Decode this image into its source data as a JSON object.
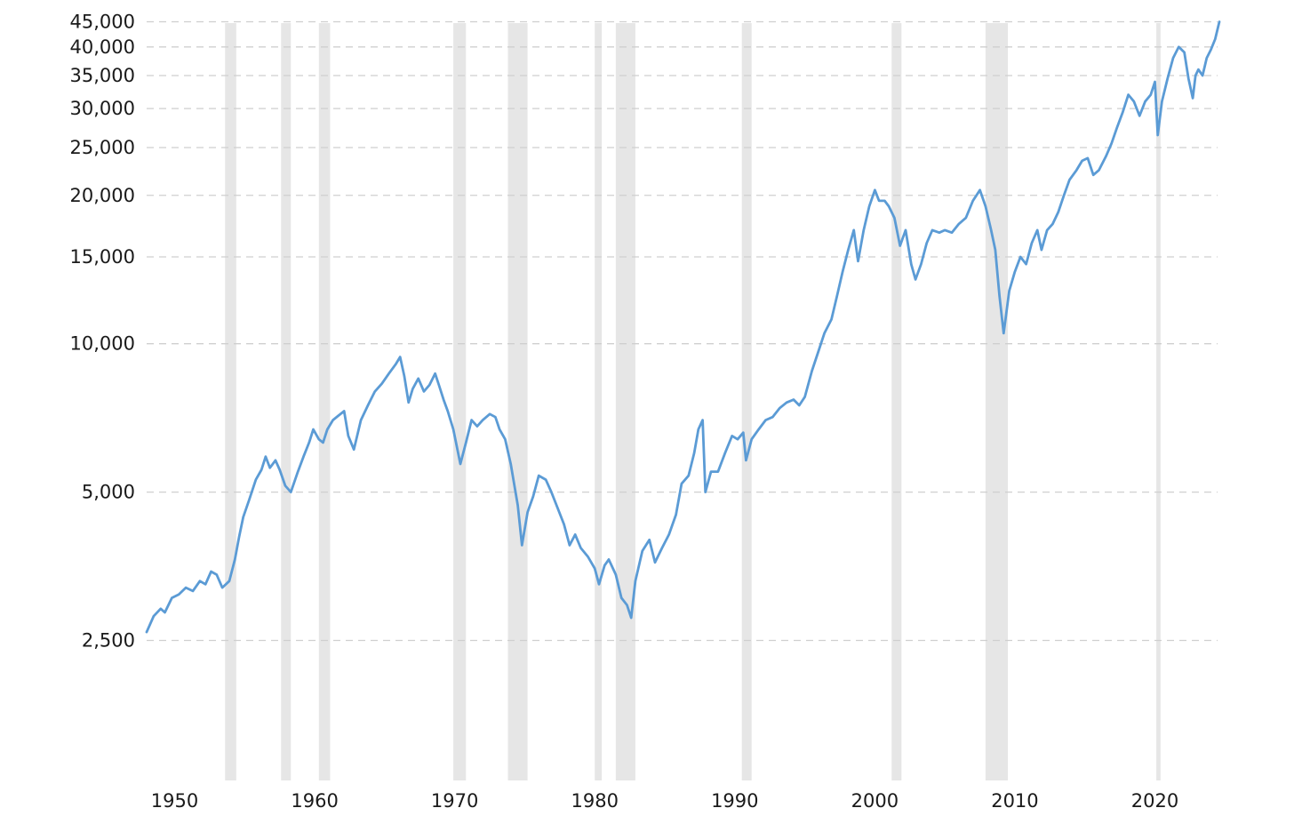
{
  "chart_data": {
    "type": "line",
    "title": "",
    "xlabel": "",
    "ylabel": "",
    "x_scale": "time",
    "y_scale": "log",
    "xlim": [
      1948.0,
      2023.4
    ],
    "ylim": [
      1300,
      47000
    ],
    "grid": "horizontal dashed",
    "y_ticks": [
      {
        "value": 2500,
        "label": "2,500"
      },
      {
        "value": 5000,
        "label": "5,000"
      },
      {
        "value": 10000,
        "label": "10,000"
      },
      {
        "value": 15000,
        "label": "15,000"
      },
      {
        "value": 20000,
        "label": "20,000"
      },
      {
        "value": 25000,
        "label": "25,000"
      },
      {
        "value": 30000,
        "label": "30,000"
      },
      {
        "value": 35000,
        "label": "35,000"
      },
      {
        "value": 40000,
        "label": "40,000"
      },
      {
        "value": 45000,
        "label": "45,000"
      }
    ],
    "x_ticks": [
      {
        "value": 1950,
        "label": "1950"
      },
      {
        "value": 1960,
        "label": "1960"
      },
      {
        "value": 1970,
        "label": "1970"
      },
      {
        "value": 1980,
        "label": "1980"
      },
      {
        "value": 1990,
        "label": "1990"
      },
      {
        "value": 2000,
        "label": "2000"
      },
      {
        "value": 2010,
        "label": "2010"
      },
      {
        "value": 2020,
        "label": "2020"
      }
    ],
    "recessions": [
      [
        1953.6,
        1954.4
      ],
      [
        1957.6,
        1958.3
      ],
      [
        1960.3,
        1961.1
      ],
      [
        1969.9,
        1970.8
      ],
      [
        1973.8,
        1975.2
      ],
      [
        1980.0,
        1980.5
      ],
      [
        1981.5,
        1982.9
      ],
      [
        1990.5,
        1991.2
      ],
      [
        2001.2,
        2001.9
      ],
      [
        2007.9,
        2009.5
      ],
      [
        2020.1,
        2020.4
      ]
    ],
    "series": [
      {
        "color": "#5b9bd5",
        "points": [
          [
            1948.0,
            2600
          ],
          [
            1948.5,
            2800
          ],
          [
            1949.0,
            2900
          ],
          [
            1949.3,
            2850
          ],
          [
            1949.8,
            3050
          ],
          [
            1950.3,
            3100
          ],
          [
            1950.8,
            3200
          ],
          [
            1951.3,
            3150
          ],
          [
            1951.8,
            3300
          ],
          [
            1952.2,
            3250
          ],
          [
            1952.6,
            3450
          ],
          [
            1953.0,
            3400
          ],
          [
            1953.4,
            3200
          ],
          [
            1953.9,
            3300
          ],
          [
            1954.3,
            3650
          ],
          [
            1954.6,
            4050
          ],
          [
            1954.9,
            4450
          ],
          [
            1955.3,
            4800
          ],
          [
            1955.8,
            5300
          ],
          [
            1956.2,
            5550
          ],
          [
            1956.5,
            5900
          ],
          [
            1956.8,
            5600
          ],
          [
            1957.2,
            5800
          ],
          [
            1957.5,
            5550
          ],
          [
            1957.9,
            5150
          ],
          [
            1958.3,
            5000
          ],
          [
            1958.8,
            5500
          ],
          [
            1959.2,
            5900
          ],
          [
            1959.6,
            6300
          ],
          [
            1959.9,
            6700
          ],
          [
            1960.3,
            6400
          ],
          [
            1960.6,
            6300
          ],
          [
            1960.9,
            6700
          ],
          [
            1961.3,
            7000
          ],
          [
            1961.7,
            7150
          ],
          [
            1962.1,
            7300
          ],
          [
            1962.4,
            6500
          ],
          [
            1962.8,
            6100
          ],
          [
            1963.3,
            7000
          ],
          [
            1963.8,
            7500
          ],
          [
            1964.3,
            8000
          ],
          [
            1964.8,
            8300
          ],
          [
            1965.3,
            8700
          ],
          [
            1965.8,
            9100
          ],
          [
            1966.1,
            9400
          ],
          [
            1966.4,
            8600
          ],
          [
            1966.7,
            7600
          ],
          [
            1967.0,
            8100
          ],
          [
            1967.4,
            8500
          ],
          [
            1967.8,
            8000
          ],
          [
            1968.2,
            8250
          ],
          [
            1968.6,
            8700
          ],
          [
            1968.9,
            8200
          ],
          [
            1969.2,
            7700
          ],
          [
            1969.5,
            7300
          ],
          [
            1969.9,
            6700
          ],
          [
            1970.4,
            5700
          ],
          [
            1970.8,
            6300
          ],
          [
            1971.2,
            7000
          ],
          [
            1971.6,
            6800
          ],
          [
            1972.0,
            7000
          ],
          [
            1972.5,
            7200
          ],
          [
            1972.9,
            7100
          ],
          [
            1973.2,
            6700
          ],
          [
            1973.6,
            6400
          ],
          [
            1974.0,
            5700
          ],
          [
            1974.5,
            4700
          ],
          [
            1974.8,
            3900
          ],
          [
            1975.2,
            4550
          ],
          [
            1975.6,
            4900
          ],
          [
            1976.0,
            5400
          ],
          [
            1976.5,
            5300
          ],
          [
            1976.9,
            5000
          ],
          [
            1977.4,
            4600
          ],
          [
            1977.8,
            4300
          ],
          [
            1978.2,
            3900
          ],
          [
            1978.6,
            4100
          ],
          [
            1979.0,
            3850
          ],
          [
            1979.5,
            3700
          ],
          [
            1980.0,
            3500
          ],
          [
            1980.3,
            3250
          ],
          [
            1980.7,
            3550
          ],
          [
            1981.0,
            3650
          ],
          [
            1981.5,
            3400
          ],
          [
            1981.9,
            3050
          ],
          [
            1982.3,
            2950
          ],
          [
            1982.6,
            2780
          ],
          [
            1982.9,
            3300
          ],
          [
            1983.4,
            3800
          ],
          [
            1983.9,
            4000
          ],
          [
            1984.3,
            3600
          ],
          [
            1984.8,
            3850
          ],
          [
            1985.3,
            4100
          ],
          [
            1985.8,
            4500
          ],
          [
            1986.2,
            5200
          ],
          [
            1986.7,
            5400
          ],
          [
            1987.1,
            6000
          ],
          [
            1987.4,
            6700
          ],
          [
            1987.7,
            7000
          ],
          [
            1987.9,
            5000
          ],
          [
            1988.3,
            5500
          ],
          [
            1988.8,
            5500
          ],
          [
            1989.3,
            6000
          ],
          [
            1989.8,
            6500
          ],
          [
            1990.2,
            6400
          ],
          [
            1990.6,
            6600
          ],
          [
            1990.8,
            5800
          ],
          [
            1991.2,
            6400
          ],
          [
            1991.7,
            6700
          ],
          [
            1992.2,
            7000
          ],
          [
            1992.7,
            7100
          ],
          [
            1993.2,
            7400
          ],
          [
            1993.7,
            7600
          ],
          [
            1994.2,
            7700
          ],
          [
            1994.6,
            7500
          ],
          [
            1995.0,
            7800
          ],
          [
            1995.5,
            8800
          ],
          [
            1996.0,
            9700
          ],
          [
            1996.4,
            10500
          ],
          [
            1996.9,
            11200
          ],
          [
            1997.3,
            12500
          ],
          [
            1997.7,
            14000
          ],
          [
            1998.1,
            15500
          ],
          [
            1998.5,
            17000
          ],
          [
            1998.8,
            14700
          ],
          [
            1999.2,
            17000
          ],
          [
            1999.6,
            19000
          ],
          [
            2000.0,
            20500
          ],
          [
            2000.3,
            19500
          ],
          [
            2000.7,
            19500
          ],
          [
            2001.0,
            19000
          ],
          [
            2001.4,
            18000
          ],
          [
            2001.8,
            15800
          ],
          [
            2002.2,
            17000
          ],
          [
            2002.6,
            14500
          ],
          [
            2002.9,
            13500
          ],
          [
            2003.3,
            14500
          ],
          [
            2003.7,
            16000
          ],
          [
            2004.1,
            17000
          ],
          [
            2004.6,
            16800
          ],
          [
            2005.0,
            17000
          ],
          [
            2005.5,
            16800
          ],
          [
            2006.0,
            17500
          ],
          [
            2006.5,
            18000
          ],
          [
            2007.0,
            19500
          ],
          [
            2007.5,
            20500
          ],
          [
            2007.9,
            19000
          ],
          [
            2008.3,
            17000
          ],
          [
            2008.6,
            15500
          ],
          [
            2008.9,
            12500
          ],
          [
            2009.2,
            10500
          ],
          [
            2009.6,
            12800
          ],
          [
            2010.0,
            14000
          ],
          [
            2010.4,
            15000
          ],
          [
            2010.8,
            14500
          ],
          [
            2011.2,
            16000
          ],
          [
            2011.6,
            17000
          ],
          [
            2011.9,
            15500
          ],
          [
            2012.3,
            17000
          ],
          [
            2012.7,
            17500
          ],
          [
            2013.1,
            18500
          ],
          [
            2013.5,
            20000
          ],
          [
            2013.9,
            21500
          ],
          [
            2014.4,
            22500
          ],
          [
            2014.8,
            23500
          ],
          [
            2015.2,
            23800
          ],
          [
            2015.6,
            22000
          ],
          [
            2016.0,
            22500
          ],
          [
            2016.5,
            24000
          ],
          [
            2016.9,
            25500
          ],
          [
            2017.3,
            27500
          ],
          [
            2017.7,
            29500
          ],
          [
            2018.1,
            32000
          ],
          [
            2018.5,
            31000
          ],
          [
            2018.9,
            29000
          ],
          [
            2019.3,
            31000
          ],
          [
            2019.7,
            32000
          ],
          [
            2020.0,
            34000
          ],
          [
            2020.2,
            26500
          ],
          [
            2020.5,
            31000
          ],
          [
            2020.9,
            34500
          ],
          [
            2021.3,
            38000
          ],
          [
            2021.7,
            40000
          ],
          [
            2022.1,
            39000
          ],
          [
            2022.4,
            34500
          ],
          [
            2022.7,
            31500
          ],
          [
            2022.9,
            35000
          ],
          [
            2023.1,
            36000
          ],
          [
            2023.4,
            35000
          ],
          [
            2023.7,
            38000
          ],
          [
            2024.0,
            39500
          ],
          [
            2024.3,
            41500
          ],
          [
            2024.6,
            45000
          ]
        ]
      }
    ]
  }
}
